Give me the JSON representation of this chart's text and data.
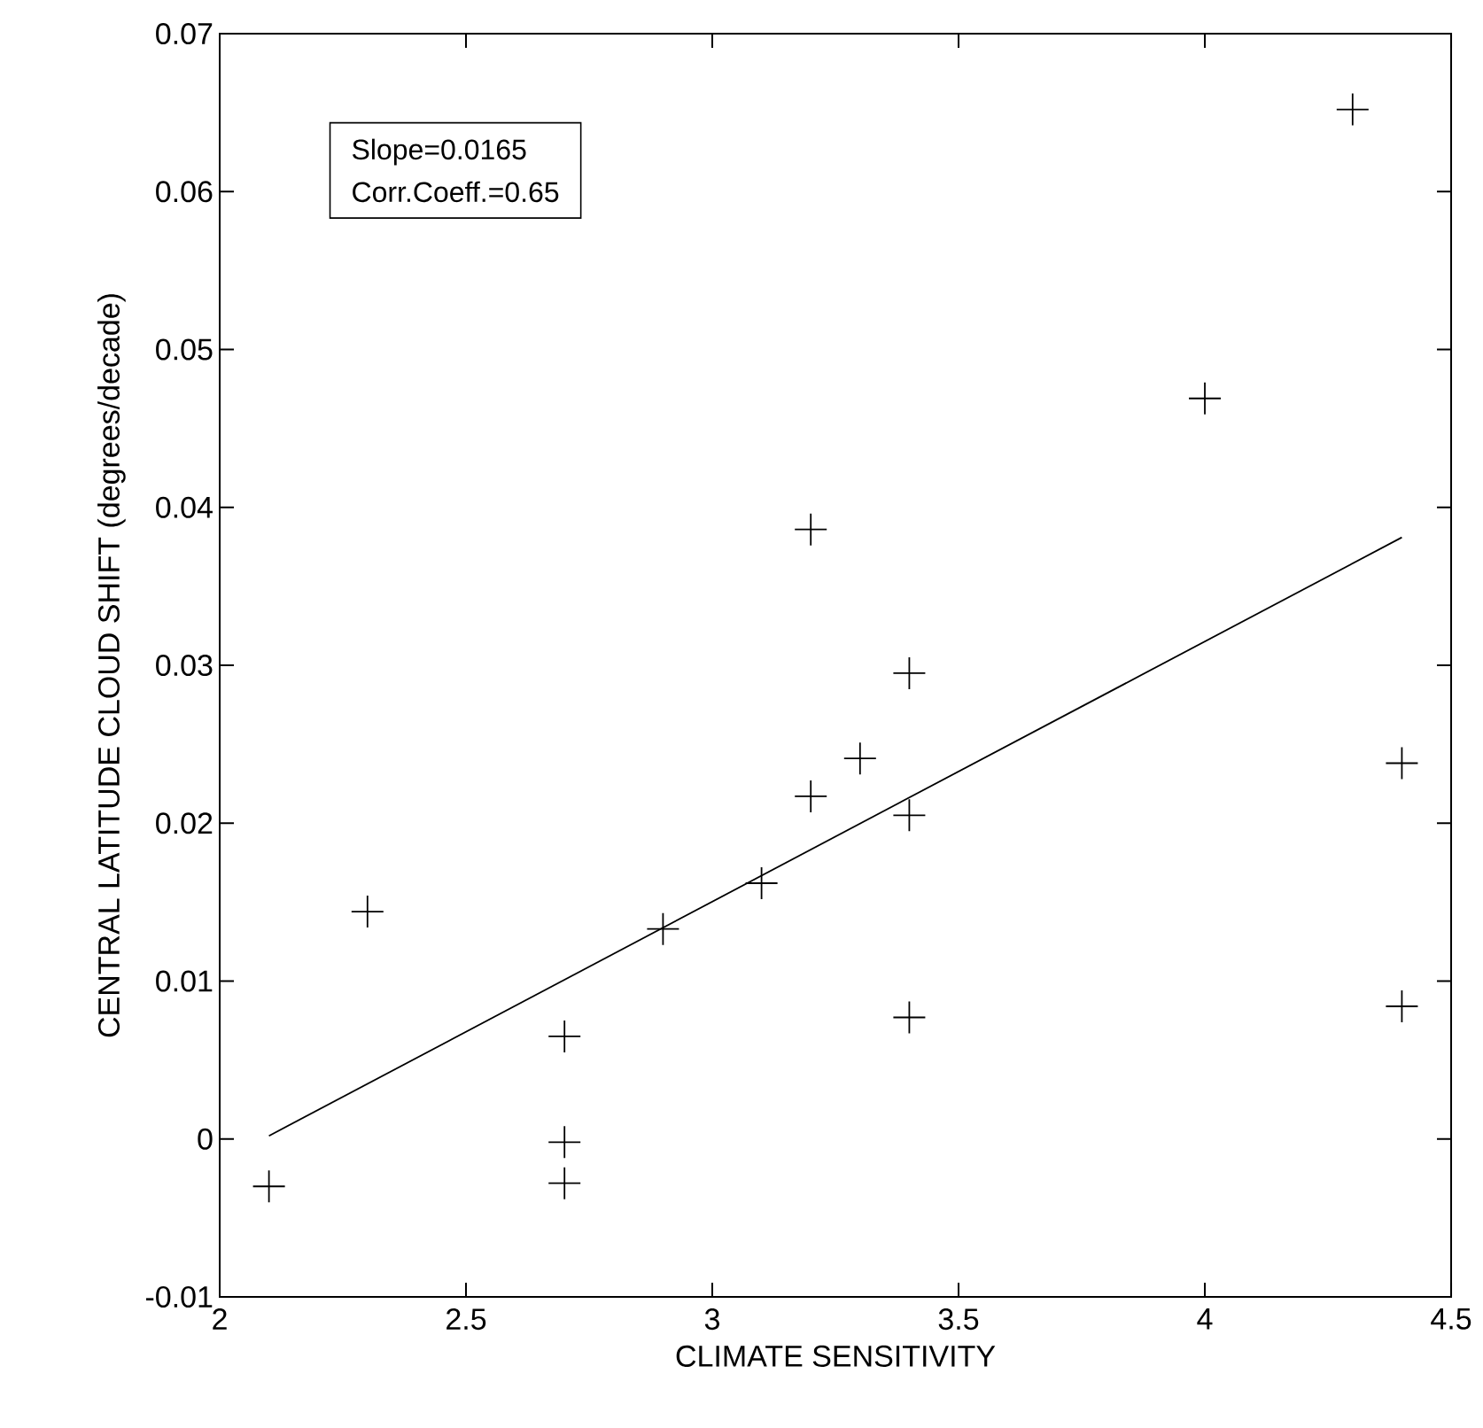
{
  "chart_data": {
    "type": "scatter",
    "xlabel": "CLIMATE SENSITIVITY",
    "ylabel": "CENTRAL LATITUDE CLOUD SHIFT (degrees/decade)",
    "annotations": [
      "Slope=0.0165",
      "Corr.Coeff.=0.65"
    ],
    "xlim": [
      2,
      4.5
    ],
    "ylim": [
      -0.01,
      0.07
    ],
    "xticks": [
      2,
      2.5,
      3,
      3.5,
      4,
      4.5
    ],
    "yticks": [
      -0.01,
      0,
      0.01,
      0.02,
      0.03,
      0.04,
      0.05,
      0.06,
      0.07
    ],
    "grid": false,
    "series": [
      {
        "marker": "cross",
        "color": "#000000",
        "x": [
          2.1,
          2.3,
          2.7,
          2.7,
          2.7,
          2.9,
          3.1,
          3.2,
          3.2,
          3.3,
          3.4,
          3.4,
          3.4,
          4.0,
          4.3,
          4.4,
          4.4
        ],
        "values": [
          -0.003,
          0.0144,
          0.0065,
          -0.0002,
          -0.0028,
          0.0133,
          0.0162,
          0.0386,
          0.0217,
          0.0241,
          0.0295,
          0.0205,
          0.0077,
          0.0469,
          0.0652,
          0.0238,
          0.0084
        ]
      },
      {
        "type": "line",
        "marker": "none",
        "color": "#000000",
        "x": [
          2.1,
          4.4
        ],
        "values": [
          0.0002,
          0.0381
        ]
      }
    ]
  }
}
